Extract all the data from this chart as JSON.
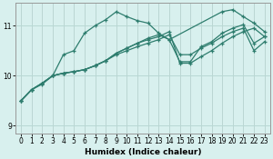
{
  "xlabel": "Humidex (Indice chaleur)",
  "bg_color": "#d8f0ee",
  "line_color": "#2e7d6e",
  "grid_color": "#b8d8d4",
  "xlim": [
    -0.5,
    23.5
  ],
  "ylim": [
    8.85,
    11.45
  ],
  "yticks": [
    9,
    10,
    11
  ],
  "xticks": [
    0,
    1,
    2,
    3,
    4,
    5,
    6,
    7,
    8,
    9,
    10,
    11,
    12,
    13,
    14,
    15,
    16,
    17,
    18,
    19,
    20,
    21,
    22,
    23
  ],
  "series": [
    {
      "x": [
        0,
        1,
        2,
        3,
        4,
        5,
        6,
        7,
        8,
        9,
        10,
        11,
        12,
        13,
        14,
        19,
        20,
        21,
        22,
        23
      ],
      "y": [
        9.5,
        9.72,
        9.83,
        10.0,
        10.42,
        10.5,
        10.85,
        11.0,
        11.12,
        11.28,
        11.18,
        11.1,
        11.05,
        10.85,
        10.72,
        11.28,
        11.32,
        11.18,
        11.05,
        10.88
      ]
    },
    {
      "x": [
        0,
        1,
        2,
        3,
        4,
        5,
        6,
        7,
        8,
        9,
        10,
        11,
        12,
        13,
        14,
        15,
        16,
        17,
        18,
        19,
        20,
        21,
        22,
        23
      ],
      "y": [
        9.5,
        9.72,
        9.85,
        10.0,
        10.05,
        10.08,
        10.12,
        10.2,
        10.3,
        10.45,
        10.55,
        10.65,
        10.75,
        10.82,
        10.72,
        10.28,
        10.28,
        10.58,
        10.68,
        10.85,
        10.95,
        11.02,
        10.65,
        10.78
      ]
    },
    {
      "x": [
        0,
        1,
        2,
        3,
        4,
        5,
        6,
        7,
        8,
        9,
        10,
        11,
        12,
        13,
        14,
        15,
        16,
        17,
        18,
        19,
        20,
        21,
        22,
        23
      ],
      "y": [
        9.5,
        9.72,
        9.85,
        10.0,
        10.05,
        10.08,
        10.12,
        10.2,
        10.3,
        10.45,
        10.55,
        10.65,
        10.72,
        10.78,
        10.88,
        10.25,
        10.25,
        10.38,
        10.5,
        10.65,
        10.78,
        10.88,
        10.95,
        10.78
      ]
    },
    {
      "x": [
        0,
        1,
        2,
        3,
        4,
        5,
        6,
        7,
        8,
        9,
        10,
        11,
        12,
        13,
        14,
        15,
        16,
        17,
        18,
        19,
        20,
        21,
        22,
        23
      ],
      "y": [
        9.5,
        9.72,
        9.85,
        10.0,
        10.05,
        10.08,
        10.12,
        10.2,
        10.3,
        10.42,
        10.5,
        10.58,
        10.65,
        10.72,
        10.82,
        10.42,
        10.42,
        10.55,
        10.65,
        10.78,
        10.88,
        10.95,
        10.5,
        10.68
      ]
    }
  ]
}
